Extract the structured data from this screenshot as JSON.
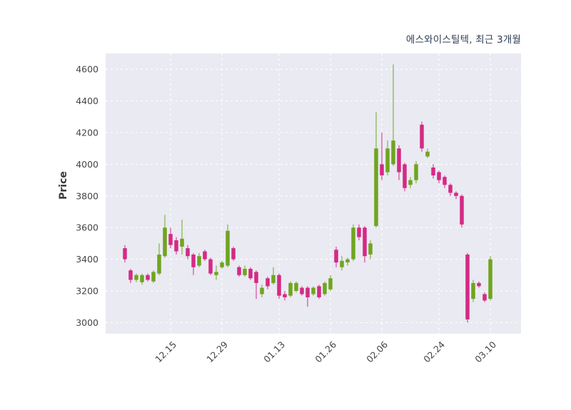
{
  "header": {
    "title": "에스와이스틸텍, 최근 3개월"
  },
  "chart_data": {
    "type": "candlestick",
    "title": "에스와이스틸텍, 최근 3개월",
    "ylabel": "Price",
    "ylim": [
      2930,
      4700
    ],
    "yticks": [
      3000,
      3200,
      3400,
      3600,
      3800,
      4000,
      4200,
      4400,
      4600
    ],
    "xtick_indices": [
      8,
      17,
      27,
      36,
      45,
      55,
      64
    ],
    "xtick_labels": [
      "12.15",
      "12.29",
      "01.13",
      "01.26",
      "02.06",
      "02.24",
      "03.10"
    ],
    "grid": "dashed-white-on-gray",
    "legend": "none",
    "colors": {
      "up": "#6fa51f",
      "down": "#d42a85",
      "plot_bg": "#eaeaf2",
      "grid": "#ffffff",
      "tick_text": "#444444",
      "title_text": "#2f3f55"
    },
    "candles_format": [
      "open",
      "high",
      "low",
      "close"
    ],
    "candles": [
      [
        3470,
        3490,
        3380,
        3400
      ],
      [
        3330,
        3340,
        3250,
        3270
      ],
      [
        3270,
        3310,
        3255,
        3300
      ],
      [
        3255,
        3310,
        3240,
        3300
      ],
      [
        3300,
        3310,
        3260,
        3270
      ],
      [
        3260,
        3330,
        3250,
        3320
      ],
      [
        3310,
        3500,
        3300,
        3430
      ],
      [
        3420,
        3680,
        3410,
        3600
      ],
      [
        3560,
        3600,
        3470,
        3490
      ],
      [
        3520,
        3540,
        3430,
        3450
      ],
      [
        3480,
        3650,
        3430,
        3530
      ],
      [
        3470,
        3490,
        3400,
        3420
      ],
      [
        3430,
        3440,
        3300,
        3350
      ],
      [
        3360,
        3440,
        3350,
        3420
      ],
      [
        3450,
        3460,
        3390,
        3400
      ],
      [
        3400,
        3410,
        3300,
        3310
      ],
      [
        3300,
        3360,
        3270,
        3320
      ],
      [
        3350,
        3390,
        3340,
        3380
      ],
      [
        3360,
        3620,
        3350,
        3580
      ],
      [
        3470,
        3480,
        3390,
        3400
      ],
      [
        3350,
        3360,
        3290,
        3300
      ],
      [
        3300,
        3360,
        3290,
        3340
      ],
      [
        3340,
        3350,
        3270,
        3280
      ],
      [
        3320,
        3330,
        3150,
        3250
      ],
      [
        3180,
        3240,
        3160,
        3220
      ],
      [
        3280,
        3290,
        3210,
        3230
      ],
      [
        3250,
        3350,
        3240,
        3300
      ],
      [
        3300,
        3310,
        3150,
        3170
      ],
      [
        3180,
        3200,
        3140,
        3160
      ],
      [
        3170,
        3260,
        3160,
        3250
      ],
      [
        3200,
        3260,
        3190,
        3250
      ],
      [
        3220,
        3230,
        3170,
        3180
      ],
      [
        3220,
        3230,
        3100,
        3160
      ],
      [
        3180,
        3230,
        3170,
        3220
      ],
      [
        3230,
        3240,
        3150,
        3160
      ],
      [
        3180,
        3260,
        3170,
        3250
      ],
      [
        3210,
        3300,
        3200,
        3280
      ],
      [
        3460,
        3480,
        3350,
        3380
      ],
      [
        3350,
        3420,
        3330,
        3390
      ],
      [
        3380,
        3410,
        3360,
        3400
      ],
      [
        3400,
        3620,
        3390,
        3600
      ],
      [
        3600,
        3620,
        3520,
        3540
      ],
      [
        3600,
        3610,
        3380,
        3420
      ],
      [
        3430,
        3520,
        3400,
        3500
      ],
      [
        3610,
        4330,
        3600,
        4100
      ],
      [
        4000,
        4200,
        3900,
        3930
      ],
      [
        3950,
        4150,
        3930,
        4100
      ],
      [
        4000,
        4630,
        3990,
        4150
      ],
      [
        4100,
        4120,
        3900,
        3950
      ],
      [
        4000,
        4010,
        3830,
        3850
      ],
      [
        3870,
        3920,
        3850,
        3900
      ],
      [
        3900,
        4020,
        3880,
        4000
      ],
      [
        4250,
        4270,
        4080,
        4100
      ],
      [
        4050,
        4100,
        4040,
        4080
      ],
      [
        3980,
        4000,
        3910,
        3930
      ],
      [
        3950,
        3960,
        3880,
        3900
      ],
      [
        3920,
        3930,
        3850,
        3870
      ],
      [
        3870,
        3880,
        3800,
        3820
      ],
      [
        3820,
        3830,
        3780,
        3800
      ],
      [
        3800,
        3810,
        3600,
        3620
      ],
      [
        3430,
        3440,
        3000,
        3020
      ],
      [
        3150,
        3270,
        3130,
        3250
      ],
      [
        3250,
        3260,
        3220,
        3230
      ],
      [
        3180,
        3190,
        3130,
        3140
      ],
      [
        3150,
        3420,
        3140,
        3400
      ]
    ]
  }
}
